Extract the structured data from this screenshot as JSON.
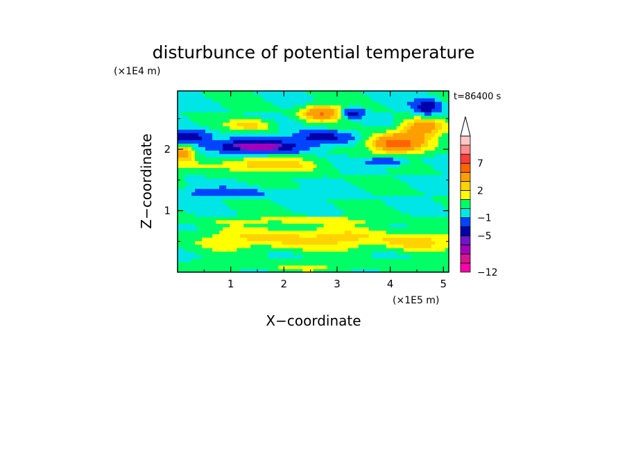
{
  "chart_data": {
    "type": "heatmap",
    "title": "disturbunce of potential temperature",
    "xlabel": "X−coordinate",
    "ylabel": "Z−coordinate",
    "x_unit": "(×1E5 m)",
    "y_unit": "(×1E4 m)",
    "time_label": "t=86400 s",
    "xlim": [
      0,
      5.1
    ],
    "ylim": [
      0,
      2.95
    ],
    "x_ticks": [
      1,
      2,
      3,
      4,
      5
    ],
    "y_ticks": [
      1,
      2
    ],
    "x_tick_labels": [
      "1",
      "2",
      "3",
      "4",
      "5"
    ],
    "y_tick_labels": [
      "1",
      "2"
    ],
    "colorbar": {
      "levels": [
        -12,
        -10,
        -8,
        -6,
        -5,
        -3,
        -1,
        0,
        1,
        2,
        3,
        5,
        7,
        9,
        11
      ],
      "colors": [
        "#ff00aa",
        "#d6168e",
        "#a500bb",
        "#6e16c8",
        "#0000aa",
        "#0044ff",
        "#00e6e6",
        "#00ff66",
        "#ffff00",
        "#ffd200",
        "#ff9e00",
        "#ff6400",
        "#ff3c3c",
        "#ff8c8c",
        "#ffc8c8"
      ],
      "tick_values": [
        7,
        2,
        -1,
        -5,
        -12
      ],
      "tick_labels": [
        "7",
        "2",
        "−1",
        "−5",
        "−12"
      ],
      "extend_max": true
    },
    "features": [
      {
        "x": 0.2,
        "z": 2.2,
        "value": -5.5,
        "sx": 0.35,
        "sz": 0.1
      },
      {
        "x": 1.5,
        "z": 2.05,
        "value": -7.0,
        "sx": 0.8,
        "sz": 0.1
      },
      {
        "x": 2.7,
        "z": 2.2,
        "value": -4.5,
        "sx": 0.5,
        "sz": 0.1
      },
      {
        "x": 2.7,
        "z": 2.6,
        "value": 5.0,
        "sx": 0.35,
        "sz": 0.12
      },
      {
        "x": 1.4,
        "z": 2.4,
        "value": 2.5,
        "sx": 0.4,
        "sz": 0.1
      },
      {
        "x": 1.6,
        "z": 1.75,
        "value": 3.0,
        "sx": 0.9,
        "sz": 0.12
      },
      {
        "x": 0.1,
        "z": 1.95,
        "value": 4.0,
        "sx": 0.2,
        "sz": 0.15
      },
      {
        "x": 4.1,
        "z": 2.1,
        "value": 6.0,
        "sx": 0.5,
        "sz": 0.15
      },
      {
        "x": 4.6,
        "z": 2.35,
        "value": 4.0,
        "sx": 0.4,
        "sz": 0.15
      },
      {
        "x": 3.3,
        "z": 2.6,
        "value": -4.0,
        "sx": 0.2,
        "sz": 0.08
      },
      {
        "x": 4.7,
        "z": 2.7,
        "value": -4.5,
        "sx": 0.25,
        "sz": 0.12
      },
      {
        "x": 3.9,
        "z": 1.8,
        "value": -3.0,
        "sx": 0.35,
        "sz": 0.07
      },
      {
        "x": 0.8,
        "z": 1.3,
        "value": -1.5,
        "sx": 1.5,
        "sz": 0.08
      },
      {
        "x": 2.3,
        "z": 0.55,
        "value": 2.5,
        "sx": 2.0,
        "sz": 0.18
      },
      {
        "x": 4.5,
        "z": 0.5,
        "value": 2.0,
        "sx": 0.6,
        "sz": 0.15
      },
      {
        "x": 2.5,
        "z": 0.1,
        "value": 1.0,
        "sx": 2.5,
        "sz": 0.08
      },
      {
        "x": 2.5,
        "z": 0.85,
        "value": 1.3,
        "sx": 2.5,
        "sz": 0.06
      }
    ]
  }
}
